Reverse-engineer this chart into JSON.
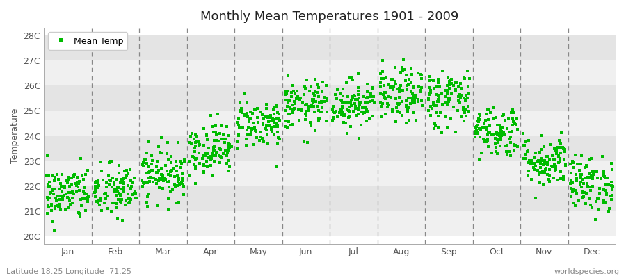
{
  "title": "Monthly Mean Temperatures 1901 - 2009",
  "ylabel": "Temperature",
  "subtitle_left": "Latitude 18.25 Longitude -71.25",
  "subtitle_right": "worldspecies.org",
  "ytick_labels": [
    "20C",
    "21C",
    "22C",
    "23C",
    "24C",
    "25C",
    "26C",
    "27C",
    "28C"
  ],
  "ytick_values": [
    20,
    21,
    22,
    23,
    24,
    25,
    26,
    27,
    28
  ],
  "ylim": [
    19.7,
    28.3
  ],
  "months": [
    "Jan",
    "Feb",
    "Mar",
    "Apr",
    "May",
    "Jun",
    "Jul",
    "Aug",
    "Sep",
    "Oct",
    "Nov",
    "Dec"
  ],
  "marker_color": "#00bb00",
  "marker_size": 10,
  "legend_label": "Mean Temp",
  "years": 109,
  "seed": 42,
  "monthly_means": [
    21.7,
    21.8,
    22.5,
    23.5,
    24.5,
    25.2,
    25.3,
    25.6,
    25.5,
    24.2,
    23.0,
    22.1
  ],
  "monthly_stds": [
    0.55,
    0.55,
    0.52,
    0.52,
    0.5,
    0.5,
    0.48,
    0.55,
    0.6,
    0.52,
    0.52,
    0.55
  ],
  "band_colors": [
    "#f0f0f0",
    "#e4e4e4"
  ],
  "fig_bg": "#ffffff",
  "plot_bg": "#ffffff",
  "grid_color": "#ffffff",
  "dash_color": "#888888",
  "spine_color": "#aaaaaa"
}
